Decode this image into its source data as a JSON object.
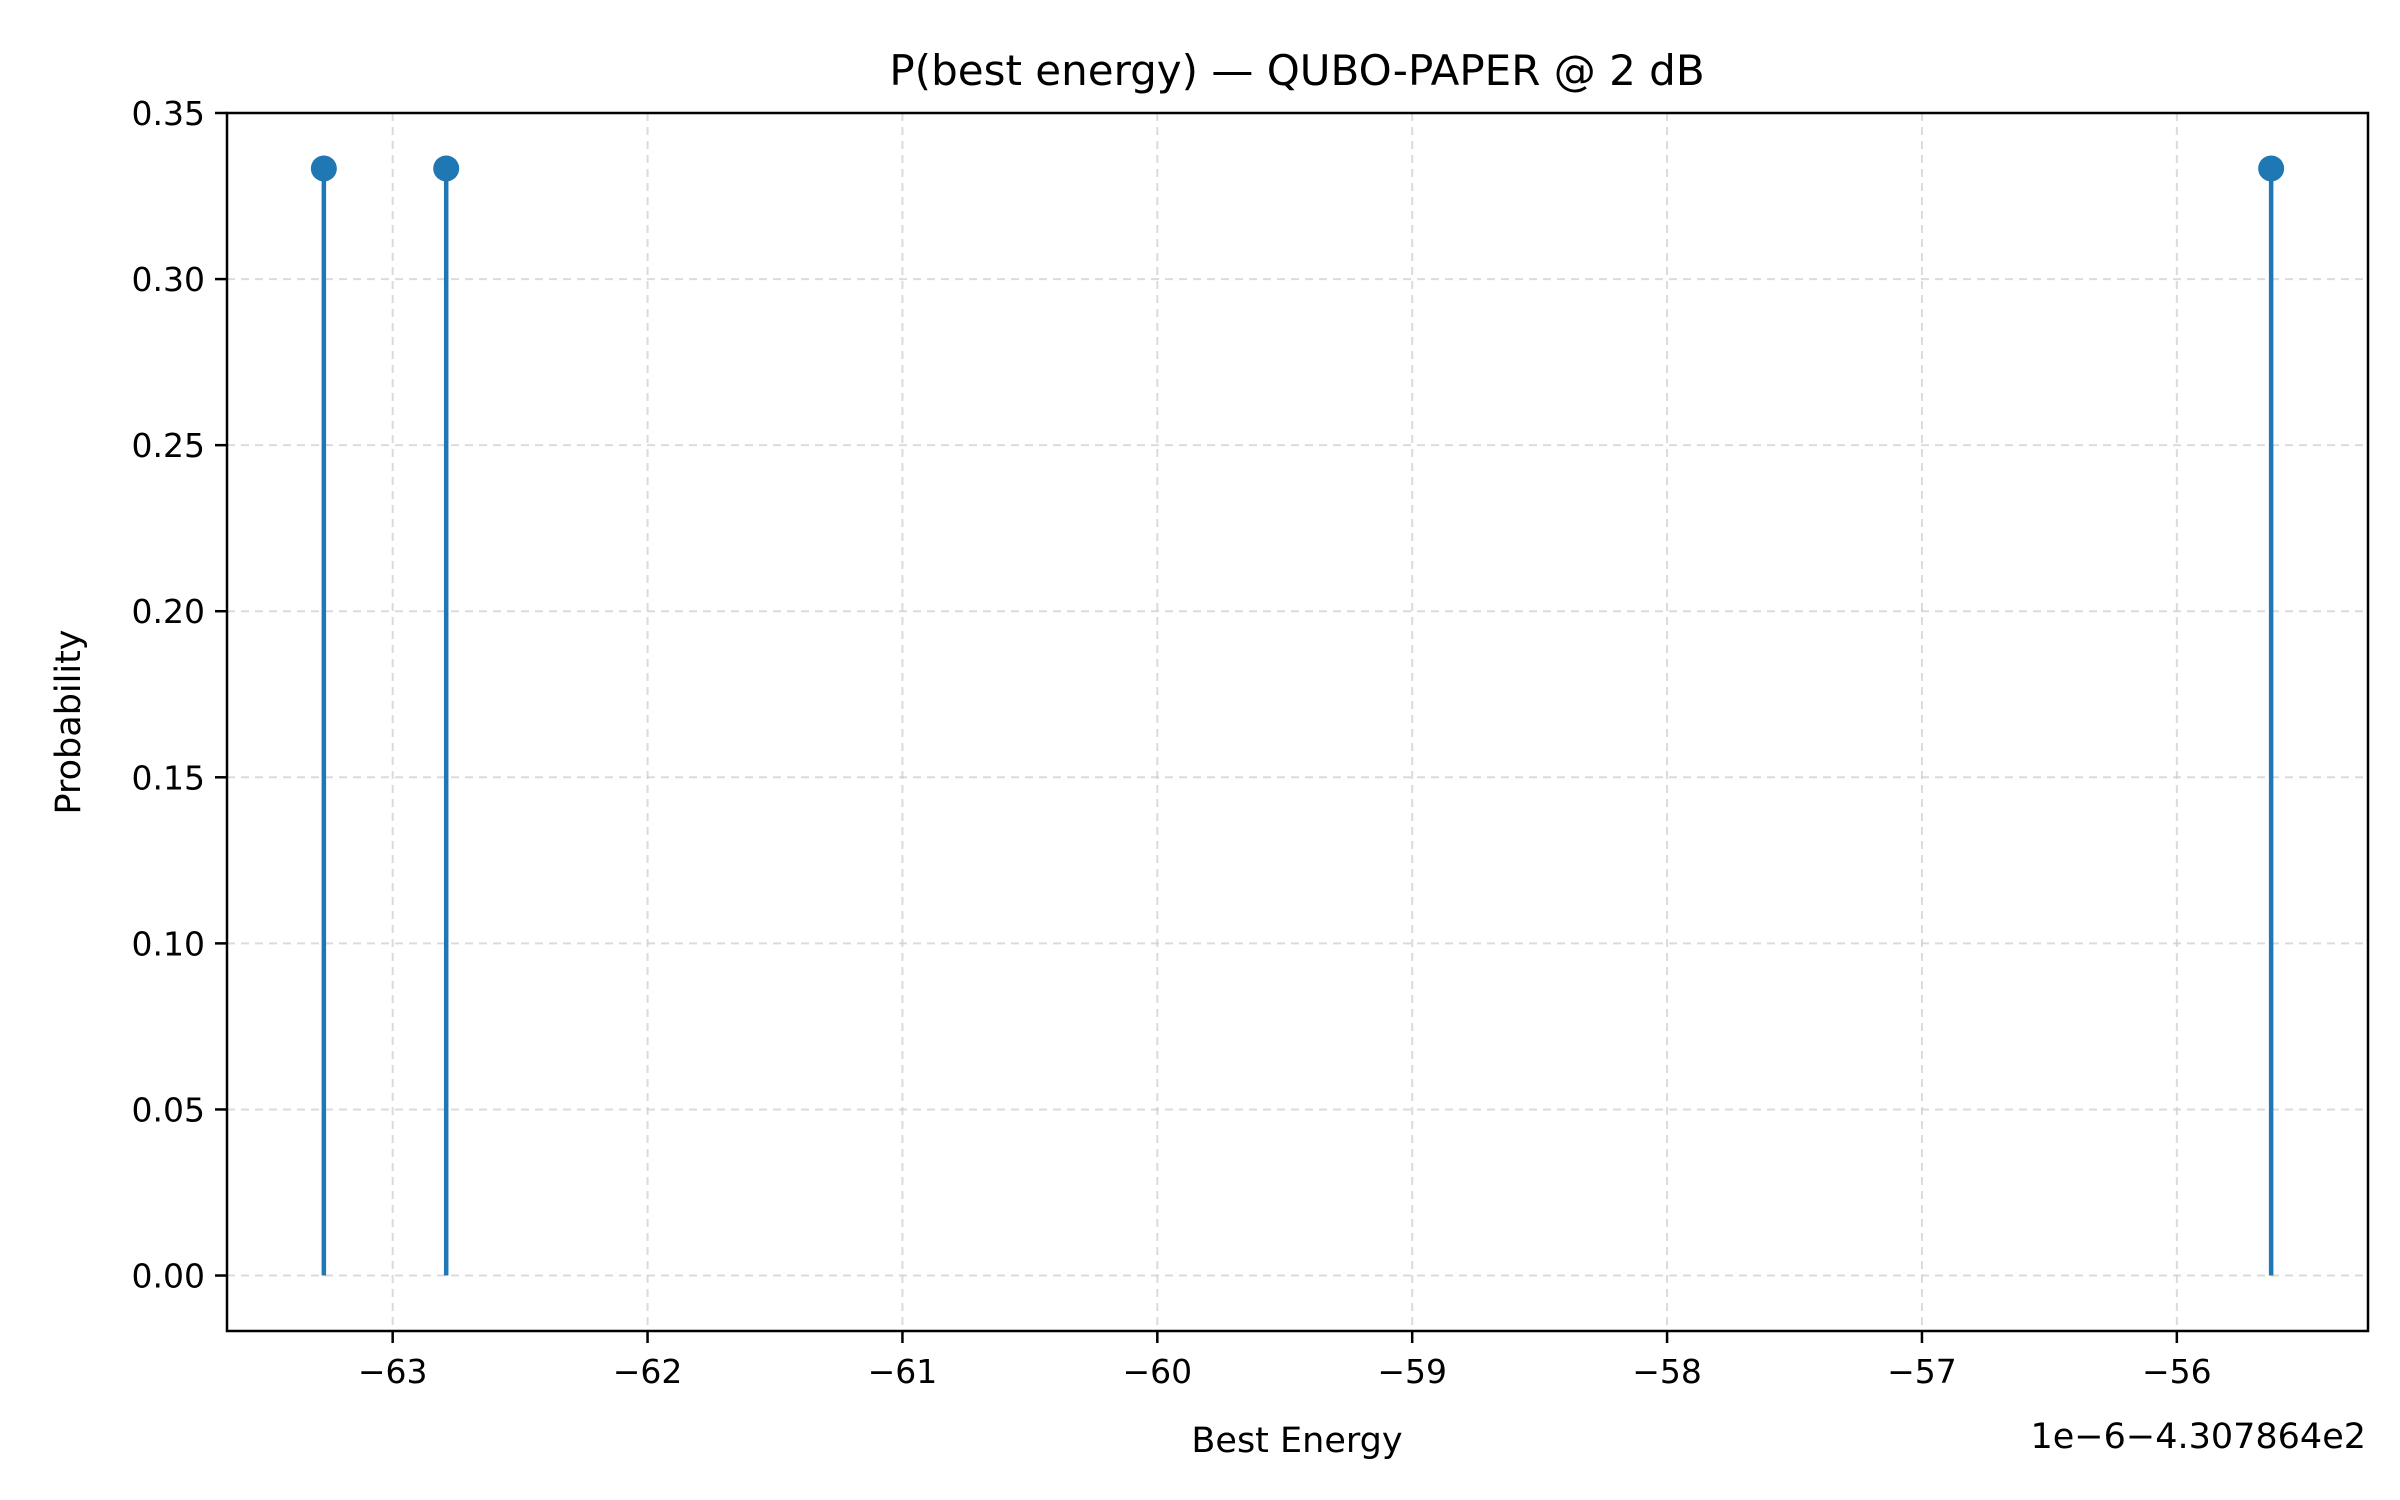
{
  "chart_data": {
    "type": "stem",
    "title": "P(best energy) — QUBO-PAPER @ 2 dB",
    "xlabel": "Best Energy",
    "ylabel": "Probability",
    "x_offset_label": "1e−6−4.307864e2",
    "x_tick_values": [
      -63,
      -62,
      -61,
      -60,
      -59,
      -58,
      -57,
      -56
    ],
    "x_tick_labels": [
      "−63",
      "−62",
      "−61",
      "−60",
      "−59",
      "−58",
      "−57",
      "−56"
    ],
    "y_tick_values": [
      0,
      0.05,
      0.1,
      0.15,
      0.2,
      0.25,
      0.3,
      0.35
    ],
    "y_tick_labels": [
      "0.00",
      "0.05",
      "0.10",
      "0.15",
      "0.20",
      "0.25",
      "0.30",
      "0.35"
    ],
    "xlim": [
      -63.65,
      -55.25
    ],
    "ylim": [
      -0.0167,
      0.35
    ],
    "grid": true,
    "color": "#1f77b4",
    "points": [
      {
        "x": -63.27,
        "y": 0.3333
      },
      {
        "x": -62.79,
        "y": 0.3333
      },
      {
        "x": -55.63,
        "y": 0.3333
      }
    ]
  }
}
